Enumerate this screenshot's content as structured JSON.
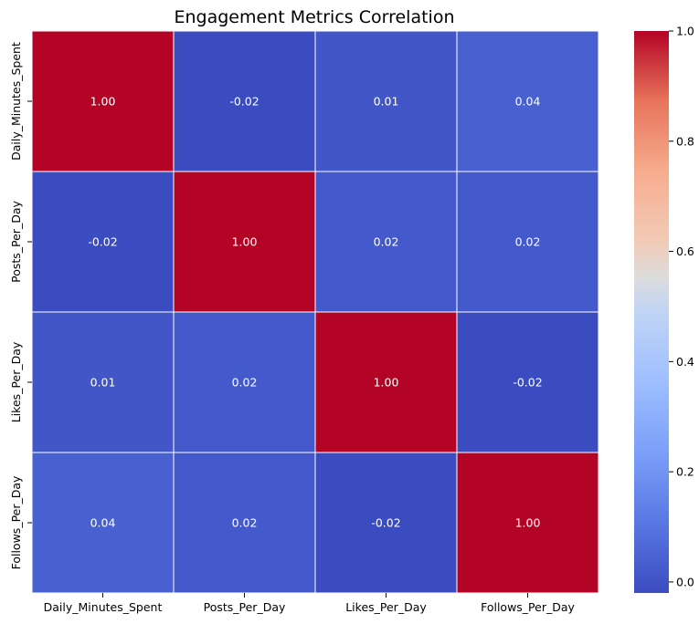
{
  "chart_data": {
    "type": "heatmap",
    "title": "Engagement Metrics Correlation",
    "rows": [
      "Daily_Minutes_Spent",
      "Posts_Per_Day",
      "Likes_Per_Day",
      "Follows_Per_Day"
    ],
    "columns": [
      "Daily_Minutes_Spent",
      "Posts_Per_Day",
      "Likes_Per_Day",
      "Follows_Per_Day"
    ],
    "values": [
      [
        1.0,
        -0.02,
        0.01,
        0.04
      ],
      [
        -0.02,
        1.0,
        0.02,
        0.02
      ],
      [
        0.01,
        0.02,
        1.0,
        -0.02
      ],
      [
        0.04,
        0.02,
        -0.02,
        1.0
      ]
    ],
    "value_format": "2 decimals",
    "colormap": "coolwarm",
    "colorbar": {
      "range": [
        -0.02,
        1.0
      ],
      "ticks": [
        "0.0",
        "0.2",
        "0.4",
        "0.6",
        "0.8",
        "1.0"
      ],
      "tick_values": [
        0.0,
        0.2,
        0.4,
        0.6,
        0.8,
        1.0
      ]
    }
  }
}
